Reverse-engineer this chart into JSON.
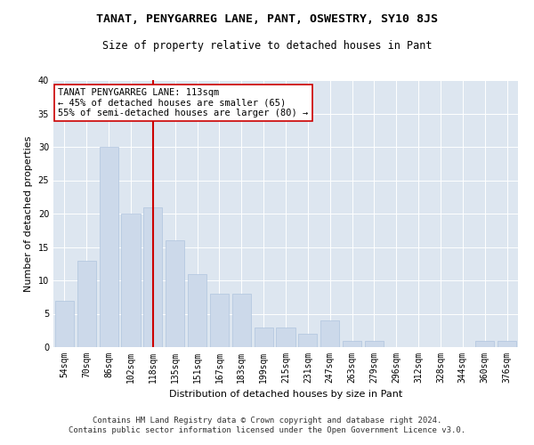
{
  "title": "TANAT, PENYGARREG LANE, PANT, OSWESTRY, SY10 8JS",
  "subtitle": "Size of property relative to detached houses in Pant",
  "xlabel": "Distribution of detached houses by size in Pant",
  "ylabel": "Number of detached properties",
  "categories": [
    "54sqm",
    "70sqm",
    "86sqm",
    "102sqm",
    "118sqm",
    "135sqm",
    "151sqm",
    "167sqm",
    "183sqm",
    "199sqm",
    "215sqm",
    "231sqm",
    "247sqm",
    "263sqm",
    "279sqm",
    "296sqm",
    "312sqm",
    "328sqm",
    "344sqm",
    "360sqm",
    "376sqm"
  ],
  "values": [
    7,
    13,
    30,
    20,
    21,
    16,
    11,
    8,
    8,
    3,
    3,
    2,
    4,
    1,
    1,
    0,
    0,
    0,
    0,
    1,
    1
  ],
  "bar_color": "#ccd9ea",
  "bar_edgecolor": "#b0c4de",
  "redline_x": 4,
  "redline_label": "TANAT PENYGARREG LANE: 113sqm",
  "redline_line1": "← 45% of detached houses are smaller (65)",
  "redline_line2": "55% of semi-detached houses are larger (80) →",
  "redline_color": "#cc0000",
  "ylim": [
    0,
    40
  ],
  "yticks": [
    0,
    5,
    10,
    15,
    20,
    25,
    30,
    35,
    40
  ],
  "plot_bg_color": "#dde6f0",
  "fig_bg_color": "#ffffff",
  "footer_line1": "Contains HM Land Registry data © Crown copyright and database right 2024.",
  "footer_line2": "Contains public sector information licensed under the Open Government Licence v3.0.",
  "title_fontsize": 9.5,
  "subtitle_fontsize": 8.5,
  "xlabel_fontsize": 8,
  "ylabel_fontsize": 8,
  "tick_fontsize": 7,
  "footer_fontsize": 6.5,
  "annot_fontsize": 7.5
}
